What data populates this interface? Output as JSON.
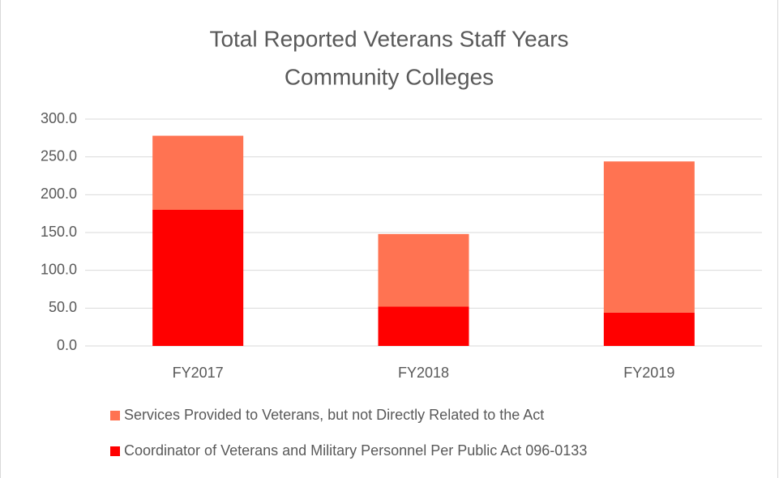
{
  "chart_data": {
    "type": "stacked_bar",
    "title": [
      "Total Reported Veterans Staff Years",
      "Community Colleges"
    ],
    "categories": [
      "FY2017",
      "FY2018",
      "FY2019"
    ],
    "series": [
      {
        "name": "Coordinator of Veterans and Military Personnel Per Public Act 096-0133",
        "color": "#ff0000",
        "values": [
          180,
          52,
          44
        ]
      },
      {
        "name": "Services Provided to Veterans, but not Directly Related to the Act",
        "color": "#ff7352",
        "values": [
          98,
          96,
          200
        ]
      }
    ],
    "ylim": [
      0,
      300
    ],
    "yticks": [
      {
        "value": 0,
        "label": "0.0"
      },
      {
        "value": 50,
        "label": "50.0"
      },
      {
        "value": 100,
        "label": "100.0"
      },
      {
        "value": 150,
        "label": "150.0"
      },
      {
        "value": 200,
        "label": "200.0"
      },
      {
        "value": 250,
        "label": "250.0"
      },
      {
        "value": 300,
        "label": "300.0"
      }
    ],
    "grid": true,
    "legend": "bottom"
  }
}
